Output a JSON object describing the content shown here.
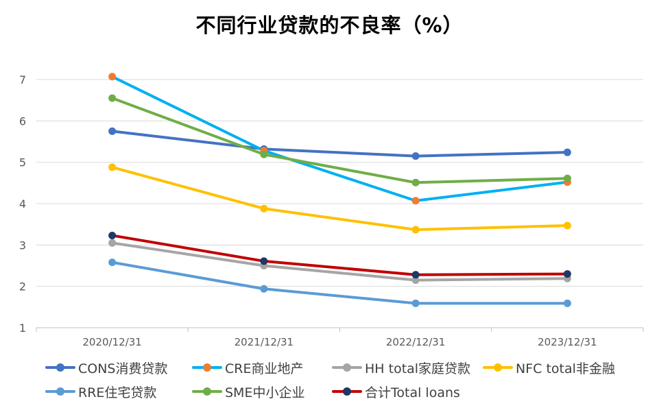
{
  "chart_data": {
    "type": "line",
    "title": "不同行业贷款的不良率（%）",
    "xlabel": "",
    "ylabel": "",
    "categories": [
      "2020/12/31",
      "2021/12/31",
      "2022/12/31",
      "2023/12/31"
    ],
    "ylim": [
      1,
      7
    ],
    "yticks": [
      1,
      2,
      3,
      4,
      5,
      6,
      7
    ],
    "grid": true,
    "legend_position": "bottom",
    "series": [
      {
        "name": "CONS消费贷款",
        "color": "#4472C4",
        "values": [
          5.75,
          5.32,
          5.15,
          5.24
        ]
      },
      {
        "name": "CRE商业地产",
        "color": "#00B0F0",
        "marker_color": "#ED7D31",
        "values": [
          7.07,
          5.28,
          4.07,
          4.52
        ]
      },
      {
        "name": "HH total家庭贷款",
        "color": "#A5A5A5",
        "values": [
          3.05,
          2.5,
          2.15,
          2.19
        ]
      },
      {
        "name": "NFC total非金融",
        "color": "#FFC000",
        "values": [
          4.88,
          3.88,
          3.37,
          3.47
        ]
      },
      {
        "name": "RRE住宅贷款",
        "color": "#5B9BD5",
        "values": [
          2.58,
          1.94,
          1.59,
          1.59
        ]
      },
      {
        "name": "SME中小企业",
        "color": "#70AD47",
        "values": [
          6.55,
          5.19,
          4.51,
          4.61
        ]
      },
      {
        "name": "合计Total loans",
        "color": "#C00000",
        "marker_color": "#203864",
        "values": [
          3.23,
          2.61,
          2.28,
          2.3
        ]
      }
    ]
  }
}
